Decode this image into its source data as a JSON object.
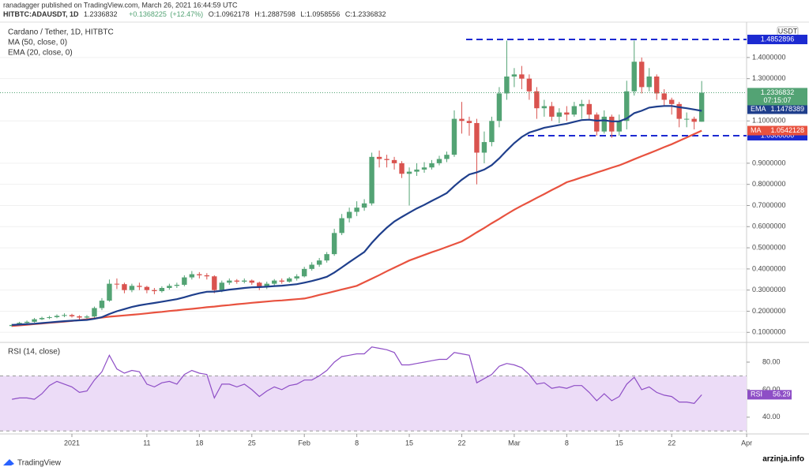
{
  "header": {
    "publisher": "ranadagger published on TradingView.com, March 26, 2021 16:44:59 UTC",
    "symbol": "HITBTC:ADAUSDT, 1D",
    "change": "+0.1368225",
    "change_pct": "(+12.47%)",
    "ohlc_labels": [
      "O:",
      "H:",
      "L:",
      "C:"
    ]
  },
  "footer": {
    "brand": "TradingView",
    "watermark": "arzinja.info"
  },
  "chart_data": [
    {
      "type": "candlestick",
      "title": "Cardano / Tether, 1D, HITBTC",
      "currency": "USDT",
      "countdown": "07:15:07",
      "up_color": "#53a374",
      "down_color": "#d9534f",
      "categories": [
        null,
        null,
        null,
        null,
        null,
        null,
        null,
        null,
        "2021",
        null,
        null,
        null,
        null,
        null,
        null,
        null,
        null,
        null,
        "11",
        null,
        null,
        null,
        null,
        null,
        null,
        "18",
        null,
        null,
        null,
        null,
        null,
        null,
        "25",
        null,
        null,
        null,
        null,
        null,
        null,
        "Feb",
        null,
        null,
        null,
        null,
        null,
        null,
        "8",
        null,
        null,
        null,
        null,
        null,
        null,
        "15",
        null,
        null,
        null,
        null,
        null,
        null,
        "22",
        null,
        null,
        null,
        null,
        null,
        null,
        "Mar",
        null,
        null,
        null,
        null,
        null,
        null,
        "8",
        null,
        null,
        null,
        null,
        null,
        null,
        "15",
        null,
        null,
        null,
        null,
        null,
        null,
        "22",
        null,
        null,
        null,
        null,
        null,
        null,
        null,
        null,
        null,
        "Apr"
      ],
      "open": [
        0.13,
        0.135,
        0.145,
        0.15,
        0.162,
        0.168,
        0.172,
        0.178,
        0.182,
        0.176,
        0.17,
        0.175,
        0.215,
        0.25,
        0.33,
        0.328,
        0.3,
        0.32,
        0.315,
        0.3,
        0.295,
        0.31,
        0.32,
        0.325,
        0.36,
        0.375,
        0.37,
        0.365,
        0.3,
        0.335,
        0.345,
        0.34,
        0.345,
        0.335,
        0.315,
        0.33,
        0.345,
        0.34,
        0.355,
        0.365,
        0.4,
        0.42,
        0.44,
        0.47,
        0.57,
        0.64,
        0.67,
        0.69,
        0.71,
        0.93,
        0.92,
        0.915,
        0.9,
        0.85,
        0.86,
        0.87,
        0.88,
        0.9,
        0.92,
        0.94,
        1.11,
        1.1,
        1.09,
        0.95,
        1.0,
        1.1,
        1.23,
        1.31,
        1.32,
        1.3,
        1.24,
        1.16,
        1.17,
        1.12,
        1.14,
        1.13,
        1.17,
        1.18,
        1.13,
        1.05,
        1.12,
        1.05,
        1.1,
        1.24,
        1.38,
        1.26,
        1.31,
        1.23,
        1.2,
        1.18,
        1.11,
        1.11,
        1.0962178,
        null,
        null,
        null,
        null,
        null,
        null
      ],
      "high": [
        0.14,
        0.15,
        0.156,
        0.168,
        0.174,
        0.178,
        0.185,
        0.19,
        0.188,
        0.181,
        0.182,
        0.222,
        0.262,
        0.35,
        0.355,
        0.335,
        0.33,
        0.335,
        0.32,
        0.31,
        0.318,
        0.33,
        0.335,
        0.37,
        0.39,
        0.385,
        0.38,
        0.37,
        0.345,
        0.355,
        0.352,
        0.355,
        0.35,
        0.34,
        0.34,
        0.352,
        0.355,
        0.362,
        0.375,
        0.41,
        0.432,
        0.452,
        0.48,
        0.59,
        0.66,
        0.69,
        0.72,
        0.73,
        0.95,
        0.96,
        0.94,
        0.93,
        0.91,
        0.88,
        0.9,
        0.905,
        0.915,
        0.935,
        0.955,
        1.15,
        1.19,
        1.12,
        1.11,
        1.05,
        1.12,
        1.26,
        1.48,
        1.35,
        1.36,
        1.32,
        1.26,
        1.2,
        1.19,
        1.16,
        1.17,
        1.19,
        1.2,
        1.2,
        1.14,
        1.15,
        1.13,
        1.13,
        1.29,
        1.48,
        1.4,
        1.35,
        1.32,
        1.25,
        1.21,
        1.19,
        1.14,
        1.12,
        1.2887598,
        null,
        null,
        null,
        null,
        null,
        null
      ],
      "low": [
        0.126,
        0.132,
        0.141,
        0.146,
        0.158,
        0.163,
        0.167,
        0.172,
        0.17,
        0.16,
        0.163,
        0.17,
        0.205,
        0.245,
        0.305,
        0.285,
        0.29,
        0.3,
        0.285,
        0.28,
        0.288,
        0.302,
        0.31,
        0.318,
        0.35,
        0.355,
        0.35,
        0.285,
        0.29,
        0.325,
        0.33,
        0.332,
        0.325,
        0.3,
        0.305,
        0.322,
        0.33,
        0.335,
        0.345,
        0.36,
        0.392,
        0.41,
        0.43,
        0.462,
        0.56,
        0.62,
        0.65,
        0.675,
        0.7,
        0.88,
        0.88,
        0.87,
        0.83,
        0.7,
        0.84,
        0.855,
        0.87,
        0.89,
        0.905,
        0.93,
        1.04,
        1.03,
        0.8,
        0.9,
        0.98,
        1.07,
        1.2,
        1.26,
        1.25,
        1.2,
        1.11,
        1.12,
        1.1,
        1.09,
        1.1,
        1.12,
        1.11,
        1.11,
        1.03,
        1.04,
        1.02,
        1.03,
        1.06,
        1.22,
        1.23,
        1.24,
        1.2,
        1.17,
        1.13,
        1.07,
        1.07,
        1.06,
        1.0958556,
        null,
        null,
        null,
        null,
        null,
        null
      ],
      "close": [
        0.135,
        0.145,
        0.15,
        0.162,
        0.168,
        0.172,
        0.178,
        0.182,
        0.176,
        0.17,
        0.175,
        0.215,
        0.25,
        0.33,
        0.328,
        0.3,
        0.32,
        0.315,
        0.3,
        0.295,
        0.31,
        0.32,
        0.325,
        0.36,
        0.375,
        0.37,
        0.365,
        0.3,
        0.335,
        0.345,
        0.34,
        0.345,
        0.335,
        0.315,
        0.33,
        0.345,
        0.34,
        0.355,
        0.365,
        0.4,
        0.42,
        0.44,
        0.47,
        0.57,
        0.64,
        0.67,
        0.69,
        0.71,
        0.93,
        0.92,
        0.915,
        0.9,
        0.85,
        0.86,
        0.87,
        0.88,
        0.9,
        0.92,
        0.94,
        1.11,
        1.1,
        1.09,
        0.95,
        1.0,
        1.1,
        1.23,
        1.31,
        1.32,
        1.3,
        1.24,
        1.16,
        1.17,
        1.12,
        1.14,
        1.13,
        1.17,
        1.18,
        1.13,
        1.05,
        1.12,
        1.05,
        1.1,
        1.24,
        1.38,
        1.26,
        1.31,
        1.23,
        1.2,
        1.18,
        1.11,
        1.11,
        1.096,
        1.2336832,
        null,
        null,
        null,
        null,
        null,
        null
      ],
      "series": [
        {
          "name": "MA (50, close, 0)",
          "tag": "MA",
          "color": "#e8523f",
          "values": [
            0.13,
            0.133,
            0.136,
            0.139,
            0.142,
            0.145,
            0.148,
            0.151,
            0.154,
            0.158,
            0.162,
            0.166,
            0.17,
            0.174,
            0.177,
            0.18,
            0.183,
            0.186,
            0.19,
            0.194,
            0.197,
            0.201,
            0.204,
            0.208,
            0.211,
            0.215,
            0.219,
            0.222,
            0.226,
            0.229,
            0.233,
            0.236,
            0.24,
            0.243,
            0.246,
            0.249,
            0.251,
            0.254,
            0.257,
            0.26,
            0.268,
            0.277,
            0.285,
            0.294,
            0.303,
            0.311,
            0.32,
            0.337,
            0.354,
            0.371,
            0.389,
            0.406,
            0.423,
            0.44,
            0.453,
            0.466,
            0.479,
            0.491,
            0.504,
            0.517,
            0.53,
            0.551,
            0.573,
            0.594,
            0.616,
            0.637,
            0.659,
            0.68,
            0.699,
            0.717,
            0.736,
            0.754,
            0.773,
            0.791,
            0.81,
            0.821,
            0.833,
            0.844,
            0.856,
            0.867,
            0.879,
            0.89,
            0.904,
            0.919,
            0.933,
            0.947,
            0.961,
            0.976,
            0.99,
            1.006,
            1.022,
            1.038,
            1.0542128,
            null,
            null,
            null,
            null,
            null,
            null
          ]
        },
        {
          "name": "EMA (20, close, 0)",
          "tag": "EMA",
          "color": "#1f3f8c",
          "values": [
            0.135,
            0.137,
            0.139,
            0.141,
            0.144,
            0.147,
            0.15,
            0.153,
            0.155,
            0.157,
            0.159,
            0.164,
            0.172,
            0.187,
            0.2,
            0.21,
            0.22,
            0.228,
            0.234,
            0.239,
            0.245,
            0.251,
            0.257,
            0.266,
            0.276,
            0.285,
            0.292,
            0.293,
            0.297,
            0.302,
            0.306,
            0.31,
            0.313,
            0.314,
            0.316,
            0.319,
            0.321,
            0.324,
            0.328,
            0.335,
            0.343,
            0.352,
            0.363,
            0.383,
            0.407,
            0.432,
            0.456,
            0.48,
            0.523,
            0.561,
            0.595,
            0.624,
            0.646,
            0.666,
            0.686,
            0.703,
            0.722,
            0.74,
            0.759,
            0.792,
            0.822,
            0.847,
            0.857,
            0.87,
            0.891,
            0.923,
            0.96,
            0.995,
            1.024,
            1.045,
            1.056,
            1.068,
            1.074,
            1.081,
            1.087,
            1.096,
            1.104,
            1.106,
            1.101,
            1.103,
            1.098,
            1.098,
            1.112,
            1.137,
            1.148,
            1.163,
            1.168,
            1.171,
            1.171,
            1.165,
            1.16,
            1.154,
            1.1478389,
            null,
            null,
            null,
            null,
            null,
            null
          ]
        }
      ],
      "levels": [
        {
          "value": 1.4852896,
          "color": "#1c2ad1"
        },
        {
          "value": {
            "value": 1.03,
            "label": "1.0300000"
          },
          "color": "#1c2ad1"
        }
      ],
      "ylim": [
        0.06,
        1.56
      ],
      "yticks": [
        {
          "value": 0.1,
          "label": "0.1000000"
        },
        {
          "value": 0.2,
          "label": "0.2000000"
        },
        {
          "value": 0.3,
          "label": "0.3000000"
        },
        {
          "value": 0.4,
          "label": "0.4000000"
        },
        {
          "value": 0.5,
          "label": "0.5000000"
        },
        {
          "value": 0.6,
          "label": "0.6000000"
        },
        {
          "value": 0.7,
          "label": "0.7000000"
        },
        {
          "value": 0.8,
          "label": "0.8000000"
        },
        {
          "value": 0.9,
          "label": "0.9000000"
        },
        {
          "value": 1.1,
          "label": "1.1000000"
        },
        {
          "value": 1.3,
          "label": "1.3000000"
        },
        {
          "value": 1.4,
          "label": "1.4000000"
        }
      ]
    },
    {
      "type": "line",
      "title": "RSI (14, close)",
      "tag": "RSI",
      "color": "#8e4ec6",
      "band": [
        30,
        70
      ],
      "band_color": "#ecdcf7",
      "values": [
        53,
        54,
        54,
        53,
        57,
        63,
        66,
        64,
        62,
        58,
        59,
        67,
        73,
        85,
        75,
        72,
        74,
        73,
        64,
        62,
        65,
        66,
        64,
        71,
        74,
        72,
        71,
        54,
        64,
        64,
        62,
        64,
        60,
        55,
        59,
        62,
        60,
        63,
        64,
        67,
        67,
        70,
        74,
        80,
        84,
        85,
        86,
        86,
        91,
        90,
        89,
        87,
        78,
        78,
        79,
        80,
        81,
        82,
        82,
        87,
        86,
        85,
        65,
        68,
        71,
        77,
        79,
        78,
        76,
        71,
        64,
        65,
        61,
        62,
        61,
        63,
        63,
        58,
        52,
        57,
        52,
        55,
        64,
        69,
        60,
        62,
        58,
        56,
        55,
        51,
        51,
        50,
        56.29,
        null,
        null,
        null,
        null,
        null,
        null
      ],
      "ylim": [
        29,
        92.6
      ],
      "yticks": [
        {
          "value": 40,
          "label": "40.00"
        },
        {
          "value": 60,
          "label": "60.00"
        },
        {
          "value": 80,
          "label": "80.00"
        }
      ]
    }
  ]
}
